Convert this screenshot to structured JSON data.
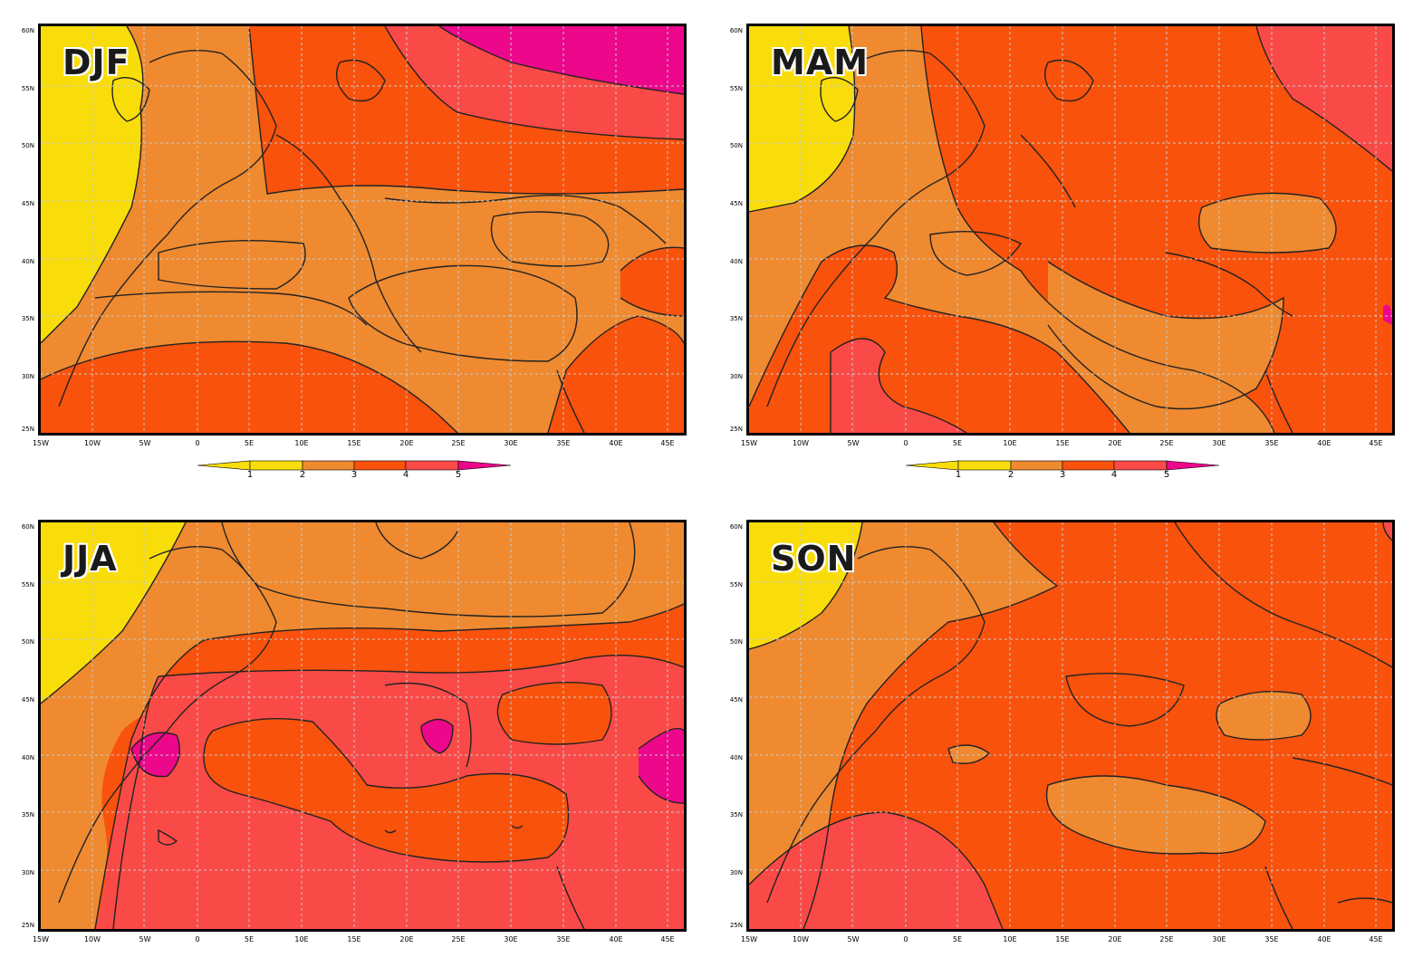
{
  "panels": [
    {
      "season": "DJF"
    },
    {
      "season": "MAM"
    },
    {
      "season": "JJA"
    },
    {
      "season": "SON"
    }
  ],
  "y_ticks": [
    "60N",
    "55N",
    "50N",
    "45N",
    "40N",
    "35N",
    "30N",
    "25N"
  ],
  "x_ticks": [
    "15W",
    "10W",
    "5W",
    "0",
    "5E",
    "10E",
    "15E",
    "20E",
    "25E",
    "30E",
    "35E",
    "40E",
    "45E"
  ],
  "colorbar": {
    "labels": [
      "1",
      "2",
      "3",
      "4",
      "5"
    ],
    "colors": [
      "#f9dd0b",
      "#f9dd0b",
      "#ef8a30",
      "#f9520c",
      "#fa4a47",
      "#ec078b"
    ]
  },
  "palette": {
    "yellow": "#f9dd0b",
    "orange": "#ef8a30",
    "red_orange": "#f9520c",
    "coral": "#fa4a47",
    "magenta": "#ec078b"
  }
}
